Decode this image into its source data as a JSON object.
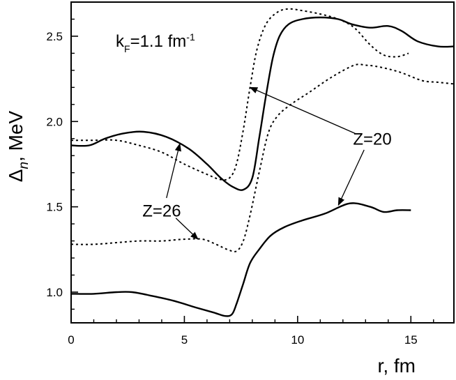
{
  "chart_data": {
    "type": "line",
    "title": "",
    "xlabel": "r, fm",
    "ylabel": {
      "base": "Δ",
      "sub": "n",
      "rest": ", MeV"
    },
    "xlim": [
      0,
      16.9
    ],
    "ylim": [
      0.82,
      2.7
    ],
    "x_ticks": [
      0,
      5,
      10,
      15
    ],
    "y_ticks": [
      1.0,
      1.5,
      2.0,
      2.5
    ],
    "x_tick_labels": [
      "0",
      "5",
      "10",
      "15"
    ],
    "y_tick_labels": [
      "1.0",
      "1.5",
      "2.0",
      "2.5"
    ],
    "grid": false,
    "legend": "none",
    "annotation_kf": {
      "prefix": "k",
      "sub": "F",
      "value": "=1.1 fm",
      "sup": "-1"
    },
    "annotations": [
      {
        "label": "Z=20",
        "text_at": [
          13.3,
          1.9
        ],
        "arrows_to": [
          [
            7.9,
            2.2
          ],
          [
            11.8,
            1.51
          ]
        ]
      },
      {
        "label": "Z=26",
        "text_at": [
          4.0,
          1.48
        ],
        "arrows_to": [
          [
            4.8,
            1.87
          ],
          [
            5.6,
            1.31
          ]
        ]
      }
    ],
    "series": [
      {
        "id": "Z20_solid_upper",
        "style": "solid",
        "points": [
          [
            0,
            1.86
          ],
          [
            0.8,
            1.86
          ],
          [
            1.5,
            1.9
          ],
          [
            2.3,
            1.93
          ],
          [
            3.2,
            1.94
          ],
          [
            4.2,
            1.91
          ],
          [
            5.2,
            1.84
          ],
          [
            6.0,
            1.75
          ],
          [
            6.6,
            1.67
          ],
          [
            7.1,
            1.62
          ],
          [
            7.6,
            1.6
          ],
          [
            8.0,
            1.67
          ],
          [
            8.3,
            1.9
          ],
          [
            8.6,
            2.15
          ],
          [
            8.9,
            2.37
          ],
          [
            9.2,
            2.5
          ],
          [
            9.6,
            2.57
          ],
          [
            10.2,
            2.6
          ],
          [
            11.0,
            2.61
          ],
          [
            11.8,
            2.6
          ],
          [
            12.4,
            2.57
          ],
          [
            13.2,
            2.55
          ],
          [
            14.0,
            2.56
          ],
          [
            14.6,
            2.53
          ],
          [
            15.3,
            2.47
          ],
          [
            16.2,
            2.44
          ],
          [
            16.9,
            2.44
          ]
        ]
      },
      {
        "id": "Z20_solid_lower",
        "style": "solid",
        "points": [
          [
            0,
            0.99
          ],
          [
            1.0,
            0.99
          ],
          [
            2.0,
            1.0
          ],
          [
            2.7,
            1.0
          ],
          [
            3.5,
            0.98
          ],
          [
            4.5,
            0.95
          ],
          [
            5.5,
            0.91
          ],
          [
            6.3,
            0.88
          ],
          [
            6.8,
            0.86
          ],
          [
            7.1,
            0.87
          ],
          [
            7.3,
            0.93
          ],
          [
            7.6,
            1.05
          ],
          [
            7.9,
            1.17
          ],
          [
            8.3,
            1.25
          ],
          [
            8.8,
            1.33
          ],
          [
            9.4,
            1.38
          ],
          [
            10.2,
            1.42
          ],
          [
            11.2,
            1.46
          ],
          [
            12.3,
            1.52
          ],
          [
            13.2,
            1.5
          ],
          [
            13.8,
            1.47
          ],
          [
            14.4,
            1.48
          ],
          [
            15.0,
            1.48
          ]
        ]
      },
      {
        "id": "Z26_dotted_upper",
        "style": "dotted",
        "points": [
          [
            0,
            1.89
          ],
          [
            1.0,
            1.89
          ],
          [
            2.0,
            1.89
          ],
          [
            3.0,
            1.86
          ],
          [
            4.0,
            1.82
          ],
          [
            5.0,
            1.75
          ],
          [
            6.0,
            1.69
          ],
          [
            6.6,
            1.66
          ],
          [
            7.0,
            1.67
          ],
          [
            7.3,
            1.75
          ],
          [
            7.6,
            1.95
          ],
          [
            7.9,
            2.2
          ],
          [
            8.2,
            2.42
          ],
          [
            8.6,
            2.57
          ],
          [
            9.1,
            2.64
          ],
          [
            9.6,
            2.66
          ],
          [
            10.2,
            2.65
          ],
          [
            11.0,
            2.63
          ],
          [
            11.8,
            2.6
          ],
          [
            12.5,
            2.55
          ],
          [
            13.2,
            2.45
          ],
          [
            13.8,
            2.39
          ],
          [
            14.4,
            2.38
          ],
          [
            14.9,
            2.4
          ]
        ]
      },
      {
        "id": "Z26_dotted_lower",
        "style": "dotted",
        "points": [
          [
            0,
            1.28
          ],
          [
            1.0,
            1.28
          ],
          [
            2.0,
            1.29
          ],
          [
            3.0,
            1.3
          ],
          [
            4.0,
            1.3
          ],
          [
            5.0,
            1.31
          ],
          [
            5.8,
            1.31
          ],
          [
            6.4,
            1.28
          ],
          [
            6.9,
            1.25
          ],
          [
            7.3,
            1.24
          ],
          [
            7.6,
            1.3
          ],
          [
            7.9,
            1.45
          ],
          [
            8.3,
            1.7
          ],
          [
            8.7,
            1.93
          ],
          [
            9.1,
            2.03
          ],
          [
            9.7,
            2.1
          ],
          [
            10.5,
            2.17
          ],
          [
            11.5,
            2.26
          ],
          [
            12.5,
            2.33
          ],
          [
            13.0,
            2.33
          ],
          [
            13.6,
            2.32
          ],
          [
            14.5,
            2.29
          ],
          [
            15.5,
            2.24
          ],
          [
            16.2,
            2.23
          ],
          [
            16.9,
            2.22
          ]
        ]
      }
    ]
  }
}
